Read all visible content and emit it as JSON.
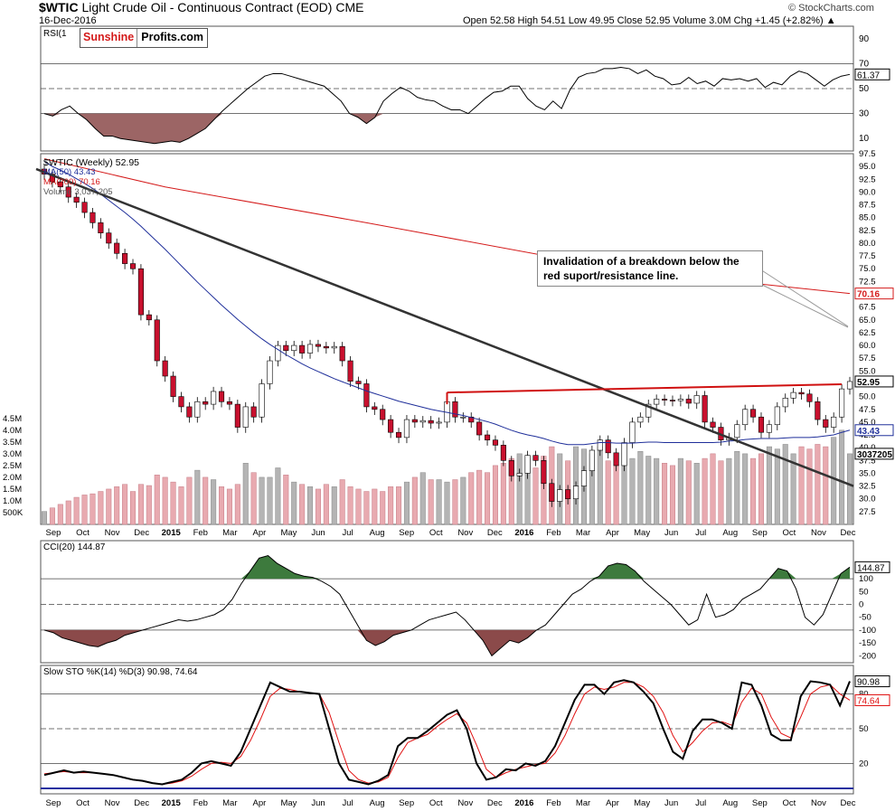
{
  "header": {
    "symbol": "$WTIC",
    "name": "Light Crude Oil - Continuous Contract (EOD)",
    "exchange": "CME",
    "date": "16-Dec-2016",
    "ohlc": "Open 52.58  High 54.51  Low 49.95  Close 52.95  Volume 3.0M  Chg +1.45 (+2.82%) ▲",
    "copyright": "© StockCharts.com"
  },
  "logo": {
    "part1": "Sunshine",
    "part2": "Profits.com"
  },
  "annotation": "Invalidation of  a breakdown below the red suport/resistance line.",
  "colors": {
    "up": "#ffffff",
    "down": "#c8102e",
    "ma50": "#1f2f9a",
    "ma200": "#d41a1a",
    "trend": "#333333",
    "support": "#d01010",
    "rsi_shade": "#8b4a4a",
    "cci_pos": "#3d7a3d",
    "stoch_d": "#e01010",
    "vol_up": "#b4b4b4",
    "vol_down": "#e8aab0"
  },
  "chart_data": [
    {
      "type": "line",
      "panel": "RSI",
      "legend": "RSI(1",
      "ylim": [
        0,
        100
      ],
      "ticks": [
        90,
        70,
        50,
        30,
        10
      ],
      "last_label": "61.37",
      "values": [
        30,
        28,
        33,
        36,
        30,
        25,
        18,
        12,
        12,
        10,
        9,
        8,
        7,
        6,
        7,
        8,
        7,
        10,
        14,
        18,
        25,
        32,
        38,
        44,
        50,
        55,
        60,
        62,
        62,
        60,
        58,
        56,
        54,
        52,
        46,
        40,
        30,
        27,
        22,
        27,
        40,
        46,
        51,
        48,
        43,
        41,
        40,
        36,
        33,
        33,
        30,
        36,
        42,
        47,
        48,
        52,
        52,
        42,
        36,
        33,
        40,
        34,
        49,
        59,
        62,
        63,
        66,
        66,
        67,
        66,
        62,
        65,
        60,
        58,
        53,
        54,
        59,
        54,
        56,
        52,
        58,
        57,
        58,
        56,
        58,
        51,
        55,
        53,
        60,
        64,
        62,
        57,
        52,
        57,
        60,
        61.37
      ]
    },
    {
      "type": "candlestick",
      "panel": "price",
      "legend": [
        "$WTIC (Weekly) 52.95",
        "MA(50) 43.43",
        "MA(200) 70.16",
        "Volume 3,037,205"
      ],
      "ylim": [
        25,
        97.5
      ],
      "ticks": [
        "97.5",
        "95.0",
        "92.5",
        "90.0",
        "87.5",
        "85.0",
        "82.5",
        "80.0",
        "77.5",
        "75.0",
        "72.5",
        "70.0",
        "67.5",
        "65.0",
        "62.5",
        "60.0",
        "57.5",
        "55.0",
        "52.5",
        "50.0",
        "47.5",
        "45.0",
        "42.5",
        "40.0",
        "37.5",
        "35.0",
        "32.5",
        "30.0",
        "27.5"
      ],
      "volume_ticks": [
        "4.5M",
        "4.0M",
        "3.5M",
        "3.0M",
        "2.5M",
        "2.0M",
        "1.5M",
        "1.0M",
        "500K"
      ],
      "x_labels": [
        "Sep",
        "Oct",
        "Nov",
        "Dec",
        "2015",
        "Feb",
        "Mar",
        "Apr",
        "May",
        "Jun",
        "Jul",
        "Aug",
        "Sep",
        "Oct",
        "Nov",
        "Dec",
        "2016",
        "Feb",
        "Mar",
        "Apr",
        "May",
        "Jun",
        "Jul",
        "Aug",
        "Sep",
        "Oct",
        "Nov",
        "Dec"
      ],
      "last_labels": {
        "close": "52.95",
        "ma200": "70.16",
        "ma50": "43.43",
        "volume": "3037205"
      },
      "close": [
        93.5,
        92.0,
        91.0,
        89.0,
        88.0,
        86.0,
        84.0,
        82.0,
        80.0,
        78.0,
        76.0,
        75.0,
        66.0,
        65.0,
        57.0,
        54.0,
        50.0,
        48.0,
        46.0,
        49.0,
        48.5,
        51.0,
        49.0,
        48.5,
        44.0,
        48.0,
        46.0,
        52.5,
        57.0,
        60.0,
        59.0,
        60.0,
        58.5,
        60.2,
        59.8,
        59.5,
        59.8,
        57.0,
        53.0,
        52.5,
        48.0,
        47.5,
        45.5,
        43.0,
        42.0,
        45.5,
        45.0,
        45.3,
        44.8,
        45.0,
        49.0,
        46.0,
        46.0,
        45.0,
        42.5,
        41.5,
        40.5,
        37.5,
        34.5,
        35.0,
        38.5,
        37.5,
        33.0,
        29.5,
        31.8,
        30.0,
        32.5,
        35.5,
        39.5,
        41.5,
        39.0,
        36.5,
        41.0,
        45.0,
        46.0,
        48.5,
        49.5,
        49.3,
        49.2,
        49.5,
        48.7,
        50.2,
        45.0,
        44.0,
        41.5,
        42.0,
        44.5,
        47.5,
        46.0,
        43.0,
        44.5,
        48.0,
        49.7,
        50.8,
        50.5,
        49.0,
        45.5,
        44.0,
        46.0,
        51.5,
        52.95
      ],
      "ma50": [
        96,
        95,
        94.3,
        93.5,
        92.6,
        91.7,
        90.7,
        89.6,
        88.4,
        87.2,
        86.0,
        84.7,
        83.3,
        81.8,
        80.3,
        78.8,
        77.2,
        75.6,
        74.0,
        72.4,
        70.9,
        69.4,
        67.9,
        66.5,
        65.1,
        63.8,
        62.5,
        61.3,
        60.2,
        59.2,
        58.2,
        57.3,
        56.4,
        55.6,
        54.9,
        54.2,
        53.5,
        52.9,
        52.3,
        51.7,
        51.1,
        50.6,
        50.1,
        49.6,
        49.1,
        48.7,
        48.3,
        47.9,
        47.5,
        47.2,
        46.9,
        46.6,
        46.3,
        45.9,
        45.5,
        45.1,
        44.6,
        44.0,
        43.4,
        42.9,
        42.5,
        42.2,
        41.8,
        41.3,
        40.9,
        40.6,
        40.6,
        40.6,
        40.8,
        41.0,
        41.0,
        40.9,
        40.9,
        40.9,
        41.0,
        41.1,
        41.1,
        41.0,
        41.0,
        41.0,
        41.0,
        41.0,
        41.0,
        41.0,
        41.1,
        41.3,
        41.4,
        41.6,
        41.7,
        41.8,
        41.8,
        41.8,
        41.9,
        42.0,
        42.0,
        42.0,
        42.1,
        42.3,
        42.5,
        43.0,
        43.43
      ],
      "ma200": [
        null,
        null,
        null,
        null,
        null,
        null,
        null,
        null,
        null,
        null,
        null,
        null,
        null,
        null,
        null,
        null,
        null,
        null,
        null,
        null,
        null,
        null,
        null,
        null,
        null,
        null,
        null,
        null,
        null,
        null,
        null,
        null,
        null,
        null,
        null,
        null,
        null,
        null,
        null,
        null,
        null,
        null,
        null,
        null,
        null,
        null,
        null,
        null,
        null,
        null,
        null,
        null,
        null,
        null,
        null,
        null,
        null,
        null,
        null,
        null,
        null,
        null,
        null,
        null,
        null,
        null,
        null,
        null,
        null,
        null,
        null,
        null,
        null,
        null,
        null,
        null,
        null,
        null,
        null,
        null,
        null,
        null,
        null,
        null,
        null,
        null,
        null,
        null,
        null,
        null,
        null,
        null,
        null,
        null,
        null,
        null,
        null,
        null,
        null,
        null,
        70.16
      ],
      "volume_millions": [
        0.55,
        0.7,
        0.85,
        1.0,
        1.15,
        1.25,
        1.3,
        1.4,
        1.5,
        1.6,
        1.7,
        1.4,
        1.7,
        1.65,
        2.1,
        2.0,
        1.8,
        1.6,
        2.0,
        2.3,
        2.0,
        1.9,
        1.6,
        1.5,
        1.7,
        2.6,
        2.2,
        2.0,
        2.0,
        2.4,
        2.1,
        1.8,
        1.7,
        1.6,
        1.5,
        1.7,
        1.6,
        1.9,
        1.6,
        1.5,
        1.4,
        1.5,
        1.4,
        1.6,
        1.6,
        1.8,
        2.0,
        2.2,
        1.9,
        1.9,
        1.8,
        1.9,
        2.0,
        2.2,
        2.3,
        2.2,
        2.5,
        2.6,
        2.8,
        3.0,
        2.8,
        2.4,
        2.9,
        3.3,
        3.0,
        2.7,
        3.3,
        3.2,
        3.0,
        3.3,
        2.7,
        2.5,
        2.7,
        2.8,
        3.1,
        2.9,
        2.8,
        2.6,
        2.5,
        2.8,
        2.7,
        2.6,
        2.8,
        3.0,
        2.7,
        2.8,
        3.1,
        3.0,
        2.8,
        3.0,
        3.3,
        3.2,
        3.4,
        3.0,
        3.3,
        3.2,
        3.4,
        3.3,
        3.7,
        4.0,
        3.0
      ]
    },
    {
      "type": "line",
      "panel": "CCI",
      "legend": "CCI(20) 144.87",
      "ylim": [
        -200,
        200
      ],
      "ticks": [
        "100",
        "50",
        "0",
        "-50",
        "-100",
        "-150",
        "-200"
      ],
      "last_label": "144.87",
      "values": [
        -100,
        -110,
        -130,
        -140,
        -150,
        -160,
        -165,
        -150,
        -140,
        -120,
        -110,
        -100,
        -90,
        -80,
        -70,
        -60,
        -65,
        -60,
        -50,
        -40,
        -20,
        20,
        80,
        130,
        180,
        190,
        160,
        140,
        120,
        110,
        105,
        90,
        70,
        40,
        -20,
        -80,
        -140,
        -160,
        -145,
        -120,
        -110,
        -100,
        -80,
        -60,
        -50,
        -40,
        -30,
        -60,
        -100,
        -140,
        -200,
        -170,
        -140,
        -150,
        -130,
        -100,
        -80,
        -40,
        0,
        40,
        60,
        90,
        110,
        150,
        160,
        155,
        130,
        90,
        60,
        30,
        0,
        -40,
        -80,
        -60,
        40,
        -50,
        -40,
        -20,
        20,
        40,
        60,
        100,
        140,
        130,
        60,
        -50,
        -80,
        -40,
        40,
        120,
        144.87
      ]
    },
    {
      "type": "line",
      "panel": "Slow STO",
      "legend": "Slow STO %K(14) %D(3) 90.98, 74.64",
      "ylim": [
        0,
        100
      ],
      "ticks": [
        80,
        50,
        20
      ],
      "last_labels": [
        "90.98",
        "74.64"
      ],
      "series": [
        {
          "name": "%K",
          "values": [
            10,
            12,
            14,
            12,
            13,
            12,
            11,
            10,
            8,
            6,
            5,
            3,
            2,
            4,
            6,
            12,
            20,
            22,
            20,
            18,
            30,
            50,
            70,
            90,
            86,
            82,
            82,
            81,
            80,
            50,
            20,
            6,
            4,
            2,
            5,
            10,
            35,
            42,
            42,
            48,
            55,
            62,
            66,
            50,
            20,
            6,
            8,
            15,
            14,
            20,
            18,
            22,
            35,
            55,
            75,
            88,
            88,
            80,
            90,
            92,
            90,
            82,
            72,
            50,
            30,
            24,
            48,
            58,
            58,
            55,
            50,
            90,
            88,
            70,
            45,
            40,
            40,
            78,
            91,
            90,
            88,
            70,
            90.98
          ]
        },
        {
          "name": "%D",
          "values": [
            11,
            12,
            13,
            12,
            12,
            12,
            11,
            10,
            8,
            6,
            5,
            3,
            2,
            3,
            5,
            9,
            15,
            20,
            21,
            20,
            26,
            40,
            58,
            78,
            85,
            84,
            82,
            81,
            80,
            64,
            38,
            14,
            6,
            3,
            4,
            8,
            25,
            38,
            42,
            45,
            52,
            58,
            63,
            55,
            36,
            15,
            8,
            12,
            15,
            17,
            19,
            20,
            29,
            44,
            63,
            80,
            86,
            84,
            86,
            90,
            90,
            86,
            78,
            64,
            44,
            30,
            38,
            48,
            55,
            56,
            53,
            73,
            85,
            80,
            60,
            46,
            42,
            60,
            80,
            86,
            88,
            80,
            74.64
          ]
        }
      ]
    }
  ]
}
